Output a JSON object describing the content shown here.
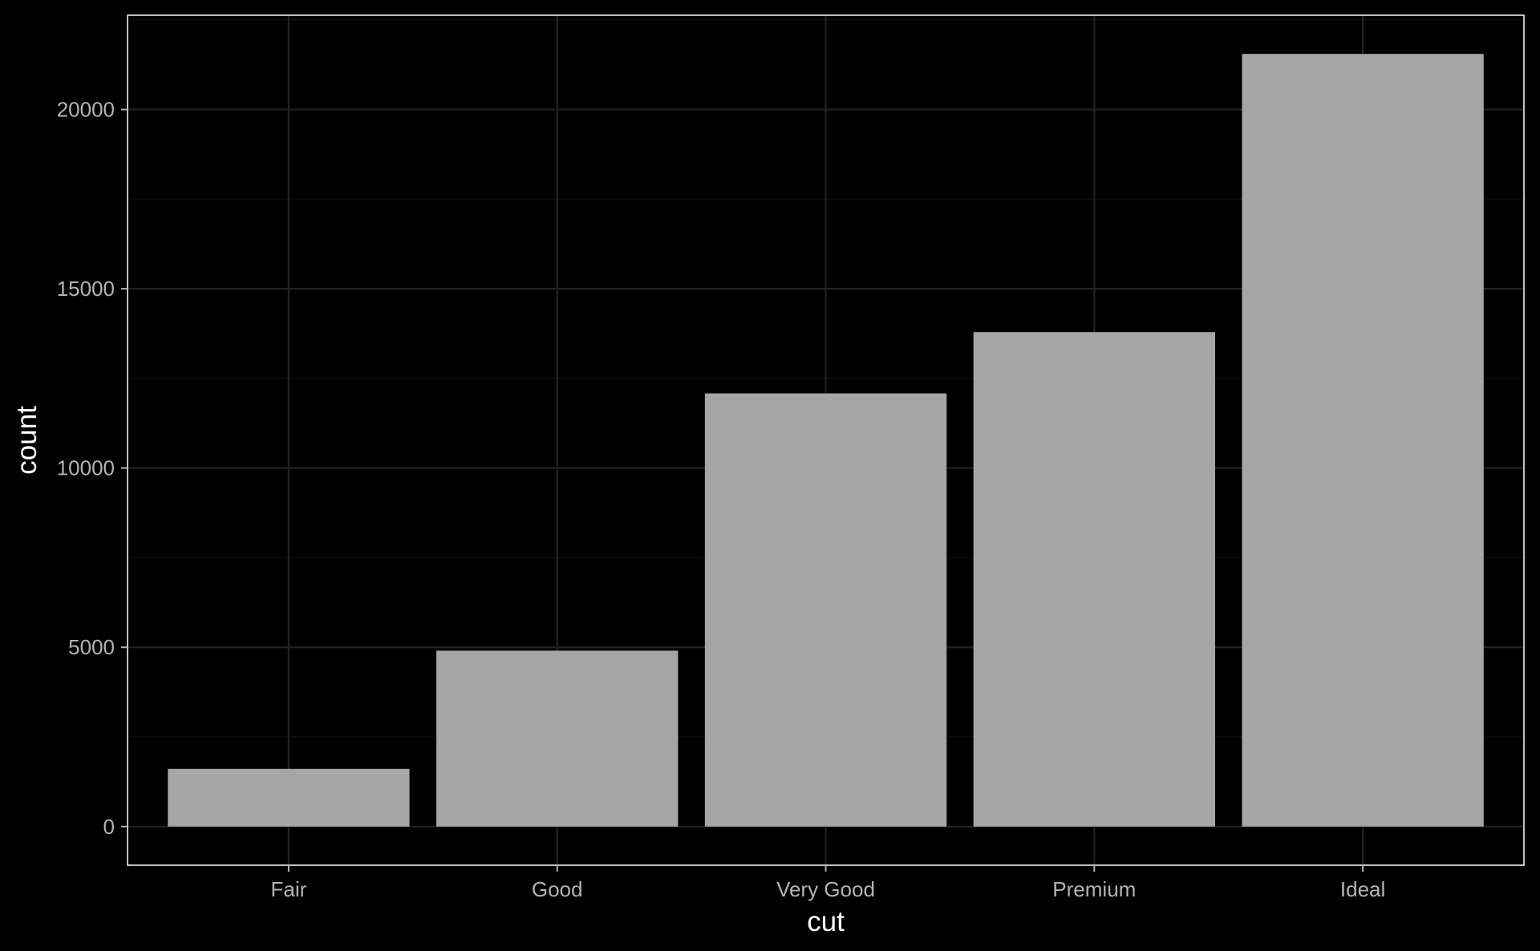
{
  "chart_data": {
    "type": "bar",
    "categories": [
      "Fair",
      "Good",
      "Very Good",
      "Premium",
      "Ideal"
    ],
    "values": [
      1610,
      4906,
      12082,
      13791,
      21551
    ],
    "title": "",
    "xlabel": "cut",
    "ylabel": "count",
    "ylim": [
      -1078,
      22629
    ],
    "yticks": [
      0,
      5000,
      10000,
      15000,
      20000
    ],
    "ytick_labels": [
      "0",
      "5000",
      "10000",
      "15000",
      "20000"
    ],
    "grid": true,
    "legend": "none"
  },
  "colors": {
    "background": "#000000",
    "panel": "#000000",
    "bar": "#A6A6A6",
    "grid_major": "#222222",
    "grid_minor": "#111111",
    "border": "#FFFFFF",
    "tick_text": "#B3B3B3",
    "axis_title": "#FFFFFF"
  }
}
